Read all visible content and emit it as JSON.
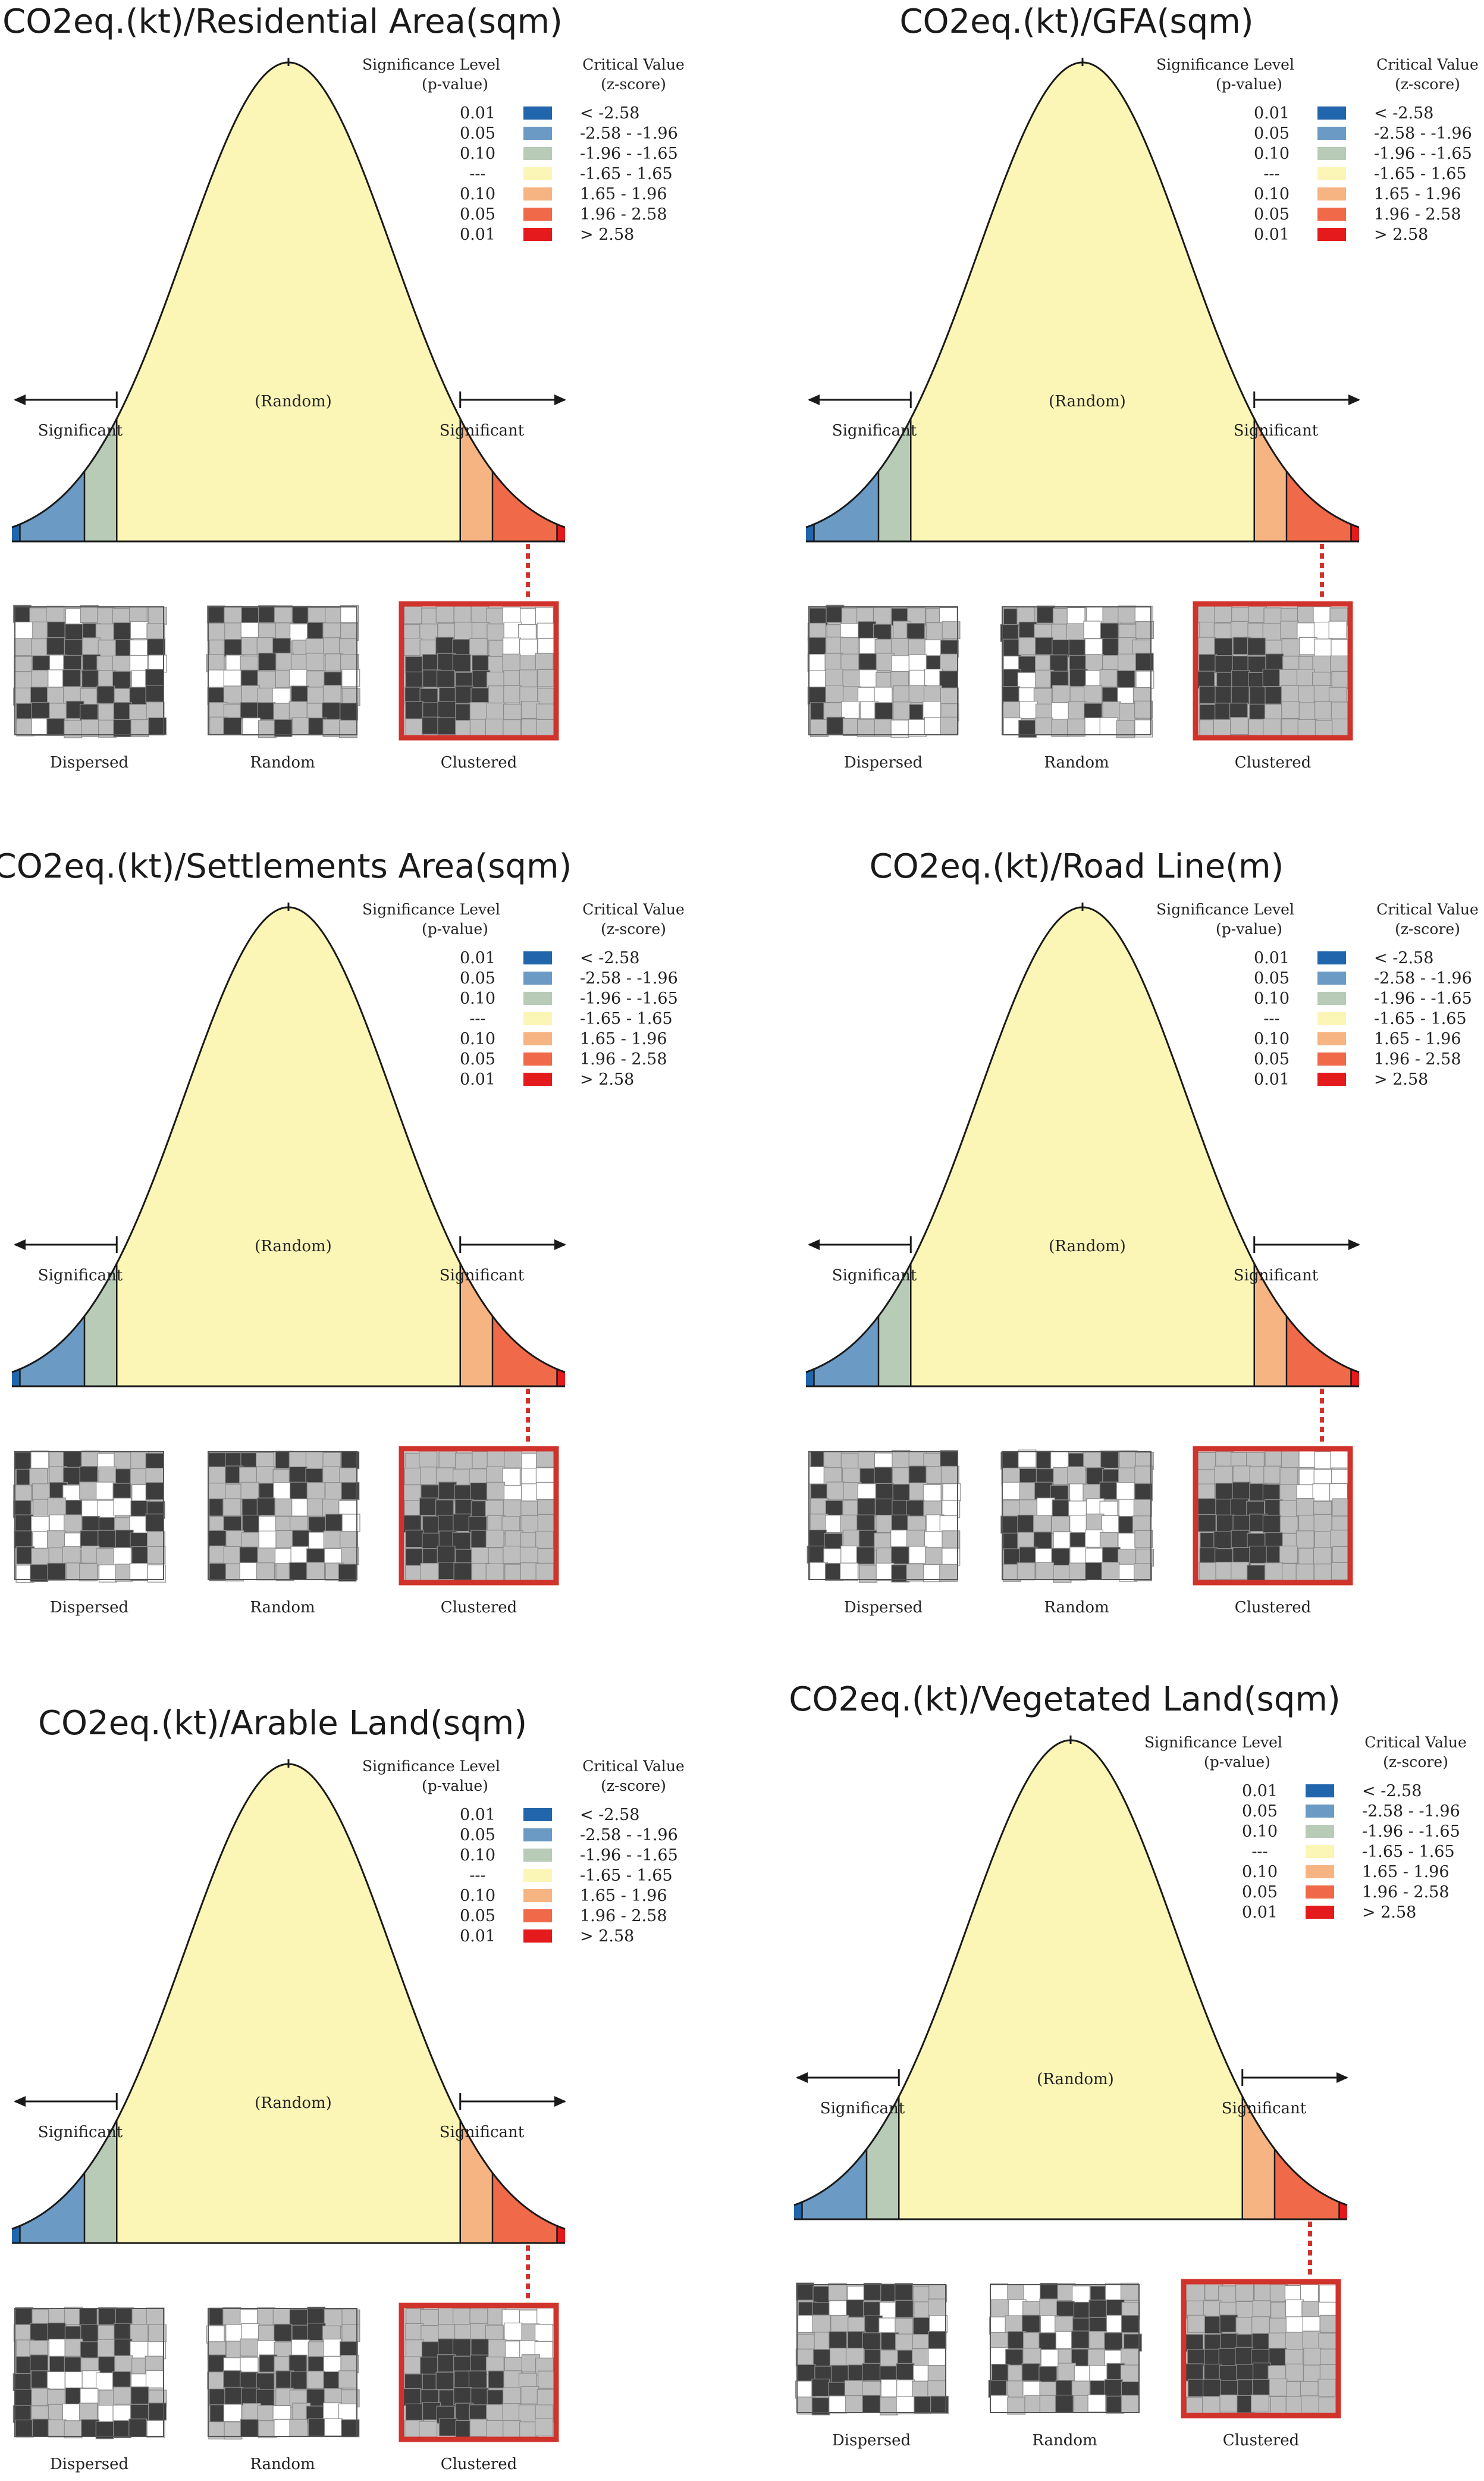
{
  "chart_data": [
    {
      "type": "normal-distribution-significance",
      "title": "CO2eq.(kt)/Residential Area(sqm)",
      "significance_header": [
        "Significance Level",
        "(p-value)"
      ],
      "critical_header": [
        "Critical Value",
        "(z-score)"
      ],
      "bands": [
        {
          "p": "0.01",
          "z": "< -2.58",
          "color": "#2166ac"
        },
        {
          "p": "0.05",
          "z": "-2.58 - -1.96",
          "color": "#6b9ac4"
        },
        {
          "p": "0.10",
          "z": "-1.96 - -1.65",
          "color": "#b7cbb7"
        },
        {
          "p": "---",
          "z": "-1.65 - 1.65",
          "color": "#fbf6b5"
        },
        {
          "p": "0.10",
          "z": "1.65 - 1.96",
          "color": "#f7b483"
        },
        {
          "p": "0.05",
          "z": "1.96 - 2.58",
          "color": "#f06a49"
        },
        {
          "p": "0.01",
          "z": "> 2.58",
          "color": "#e41a1c"
        }
      ],
      "center_label": "(Random)",
      "side_labels": [
        "Significant",
        "Significant"
      ],
      "pattern_labels": [
        "Dispersed",
        "Random",
        "Clustered"
      ],
      "highlighted_pattern": "Clustered"
    },
    {
      "type": "normal-distribution-significance",
      "title": "CO2eq.(kt)/GFA(sqm)",
      "significance_header": [
        "Significance Level",
        "(p-value)"
      ],
      "critical_header": [
        "Critical Value",
        "(z-score)"
      ],
      "bands": [
        {
          "p": "0.01",
          "z": "< -2.58",
          "color": "#2166ac"
        },
        {
          "p": "0.05",
          "z": "-2.58 - -1.96",
          "color": "#6b9ac4"
        },
        {
          "p": "0.10",
          "z": "-1.96 - -1.65",
          "color": "#b7cbb7"
        },
        {
          "p": "---",
          "z": "-1.65 - 1.65",
          "color": "#fbf6b5"
        },
        {
          "p": "0.10",
          "z": "1.65 - 1.96",
          "color": "#f7b483"
        },
        {
          "p": "0.05",
          "z": "1.96 - 2.58",
          "color": "#f06a49"
        },
        {
          "p": "0.01",
          "z": "> 2.58",
          "color": "#e41a1c"
        }
      ],
      "center_label": "(Random)",
      "side_labels": [
        "Significant",
        "Significant"
      ],
      "pattern_labels": [
        "Dispersed",
        "Random",
        "Clustered"
      ],
      "highlighted_pattern": "Clustered"
    },
    {
      "type": "normal-distribution-significance",
      "title": "CO2eq.(kt)/Settlements Area(sqm)",
      "significance_header": [
        "Significance Level",
        "(p-value)"
      ],
      "critical_header": [
        "Critical Value",
        "(z-score)"
      ],
      "bands": [
        {
          "p": "0.01",
          "z": "< -2.58",
          "color": "#2166ac"
        },
        {
          "p": "0.05",
          "z": "-2.58 - -1.96",
          "color": "#6b9ac4"
        },
        {
          "p": "0.10",
          "z": "-1.96 - -1.65",
          "color": "#b7cbb7"
        },
        {
          "p": "---",
          "z": "-1.65 - 1.65",
          "color": "#fbf6b5"
        },
        {
          "p": "0.10",
          "z": "1.65 - 1.96",
          "color": "#f7b483"
        },
        {
          "p": "0.05",
          "z": "1.96 - 2.58",
          "color": "#f06a49"
        },
        {
          "p": "0.01",
          "z": "> 2.58",
          "color": "#e41a1c"
        }
      ],
      "center_label": "(Random)",
      "side_labels": [
        "Significant",
        "Significant"
      ],
      "pattern_labels": [
        "Dispersed",
        "Random",
        "Clustered"
      ],
      "highlighted_pattern": "Clustered"
    },
    {
      "type": "normal-distribution-significance",
      "title": "CO2eq.(kt)/Road Line(m)",
      "significance_header": [
        "Significance Level",
        "(p-value)"
      ],
      "critical_header": [
        "Critical Value",
        "(z-score)"
      ],
      "bands": [
        {
          "p": "0.01",
          "z": "< -2.58",
          "color": "#2166ac"
        },
        {
          "p": "0.05",
          "z": "-2.58 - -1.96",
          "color": "#6b9ac4"
        },
        {
          "p": "0.10",
          "z": "-1.96 - -1.65",
          "color": "#b7cbb7"
        },
        {
          "p": "---",
          "z": "-1.65 - 1.65",
          "color": "#fbf6b5"
        },
        {
          "p": "0.10",
          "z": "1.65 - 1.96",
          "color": "#f7b483"
        },
        {
          "p": "0.05",
          "z": "1.96 - 2.58",
          "color": "#f06a49"
        },
        {
          "p": "0.01",
          "z": "> 2.58",
          "color": "#e41a1c"
        }
      ],
      "center_label": "(Random)",
      "side_labels": [
        "Significant",
        "Significant"
      ],
      "pattern_labels": [
        "Dispersed",
        "Random",
        "Clustered"
      ],
      "highlighted_pattern": "Clustered"
    },
    {
      "type": "normal-distribution-significance",
      "title": "CO2eq.(kt)/Arable Land(sqm)",
      "significance_header": [
        "Significance Level",
        "(p-value)"
      ],
      "critical_header": [
        "Critical Value",
        "(z-score)"
      ],
      "bands": [
        {
          "p": "0.01",
          "z": "< -2.58",
          "color": "#2166ac"
        },
        {
          "p": "0.05",
          "z": "-2.58 - -1.96",
          "color": "#6b9ac4"
        },
        {
          "p": "0.10",
          "z": "-1.96 - -1.65",
          "color": "#b7cbb7"
        },
        {
          "p": "---",
          "z": "-1.65 - 1.65",
          "color": "#fbf6b5"
        },
        {
          "p": "0.10",
          "z": "1.65 - 1.96",
          "color": "#f7b483"
        },
        {
          "p": "0.05",
          "z": "1.96 - 2.58",
          "color": "#f06a49"
        },
        {
          "p": "0.01",
          "z": "> 2.58",
          "color": "#e41a1c"
        }
      ],
      "center_label": "(Random)",
      "side_labels": [
        "Significant",
        "Significant"
      ],
      "pattern_labels": [
        "Dispersed",
        "Random",
        "Clustered"
      ],
      "highlighted_pattern": "Clustered"
    },
    {
      "type": "normal-distribution-significance",
      "title": "CO2eq.(kt)/Vegetated Land(sqm)",
      "significance_header": [
        "Significance Level",
        "(p-value)"
      ],
      "critical_header": [
        "Critical Value",
        "(z-score)"
      ],
      "bands": [
        {
          "p": "0.01",
          "z": "< -2.58",
          "color": "#2166ac"
        },
        {
          "p": "0.05",
          "z": "-2.58 - -1.96",
          "color": "#6b9ac4"
        },
        {
          "p": "0.10",
          "z": "-1.96 - -1.65",
          "color": "#b7cbb7"
        },
        {
          "p": "---",
          "z": "-1.65 - 1.65",
          "color": "#fbf6b5"
        },
        {
          "p": "0.10",
          "z": "1.65 - 1.96",
          "color": "#f7b483"
        },
        {
          "p": "0.05",
          "z": "1.96 - 2.58",
          "color": "#f06a49"
        },
        {
          "p": "0.01",
          "z": "> 2.58",
          "color": "#e41a1c"
        }
      ],
      "center_label": "(Random)",
      "side_labels": [
        "Significant",
        "Significant"
      ],
      "pattern_labels": [
        "Dispersed",
        "Random",
        "Clustered"
      ],
      "highlighted_pattern": "Clustered"
    }
  ],
  "colors": {
    "curve": "#1a1a1a",
    "highlight_frame": "#d0332b",
    "map_dark": "#3d3d3d",
    "map_mid": "#bdbdbd",
    "map_light": "#ffffff"
  }
}
